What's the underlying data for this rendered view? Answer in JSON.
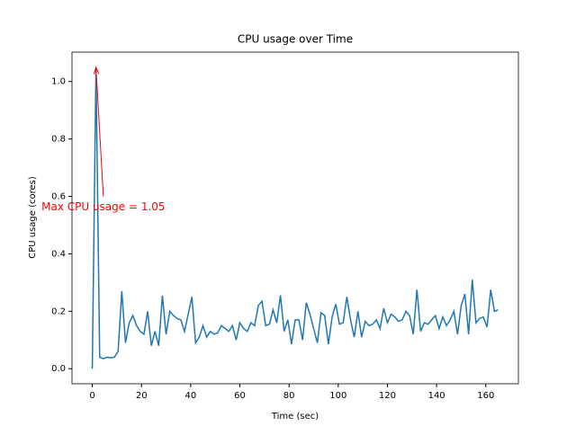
{
  "chart_data": {
    "type": "line",
    "title": "CPU usage over Time",
    "xlabel": "Time (sec)",
    "ylabel": "CPU usage (cores)",
    "x": [
      0,
      1.5,
      3,
      4.5,
      6,
      7.5,
      9,
      10.5,
      12,
      13.5,
      15,
      16.5,
      18,
      19.5,
      21,
      22.5,
      24,
      25.5,
      27,
      28.5,
      30,
      31.5,
      33,
      34.5,
      36,
      37.5,
      39,
      40.5,
      42,
      43.5,
      45,
      46.5,
      48,
      49.5,
      51,
      52.5,
      54,
      55.5,
      57,
      58.5,
      60,
      61.5,
      63,
      64.5,
      66,
      67.5,
      69,
      70.5,
      72,
      73.5,
      75,
      76.5,
      78,
      79.5,
      81,
      82.5,
      84,
      85.5,
      87,
      88.5,
      90,
      91.5,
      93,
      94.5,
      96,
      97.5,
      99,
      100.5,
      102,
      103.5,
      105,
      106.5,
      108,
      109.5,
      111,
      112.5,
      114,
      115.5,
      117,
      118.5,
      120,
      121.5,
      123,
      124.5,
      126,
      127.5,
      129,
      130.5,
      132,
      133.5,
      135,
      136.5,
      138,
      139.5,
      141,
      142.5,
      144,
      145.5,
      147,
      148.5,
      150,
      151.5,
      153,
      154.5,
      156,
      157.5,
      159,
      160.5,
      162,
      163.5,
      165
    ],
    "series": [
      {
        "name": "CPU usage",
        "color": "#1f77b4",
        "values": [
          0,
          1.05,
          0.04,
          0.035,
          0.04,
          0.038,
          0.04,
          0.06,
          0.27,
          0.09,
          0.16,
          0.185,
          0.15,
          0.13,
          0.12,
          0.2,
          0.08,
          0.13,
          0.08,
          0.255,
          0.12,
          0.2,
          0.185,
          0.175,
          0.17,
          0.13,
          0.19,
          0.25,
          0.09,
          0.11,
          0.15,
          0.11,
          0.13,
          0.12,
          0.125,
          0.15,
          0.14,
          0.13,
          0.15,
          0.1,
          0.16,
          0.14,
          0.13,
          0.16,
          0.15,
          0.22,
          0.235,
          0.15,
          0.155,
          0.205,
          0.16,
          0.255,
          0.13,
          0.17,
          0.085,
          0.17,
          0.17,
          0.1,
          0.23,
          0.19,
          0.14,
          0.09,
          0.195,
          0.185,
          0.085,
          0.18,
          0.225,
          0.155,
          0.16,
          0.25,
          0.17,
          0.11,
          0.2,
          0.11,
          0.165,
          0.15,
          0.155,
          0.17,
          0.14,
          0.21,
          0.16,
          0.19,
          0.18,
          0.165,
          0.17,
          0.2,
          0.185,
          0.12,
          0.275,
          0.13,
          0.16,
          0.155,
          0.17,
          0.185,
          0.14,
          0.18,
          0.15,
          0.17,
          0.2,
          0.12,
          0.22,
          0.26,
          0.12,
          0.31,
          0.16,
          0.175,
          0.18,
          0.145,
          0.275,
          0.2,
          0.205
        ]
      }
    ],
    "xlim": [
      -8.25,
      173.25
    ],
    "ylim": [
      -0.0525,
      1.1025
    ],
    "xticks": [
      0,
      20,
      40,
      60,
      80,
      100,
      120,
      140,
      160
    ],
    "yticks": [
      {
        "value": 0,
        "label": "0.0"
      },
      {
        "value": 0.2,
        "label": "0.2"
      },
      {
        "value": 0.4,
        "label": "0.4"
      },
      {
        "value": 0.6,
        "label": "0.6"
      },
      {
        "value": 0.8,
        "label": "0.8"
      },
      {
        "value": 1,
        "label": "1.0"
      }
    ],
    "annotation": {
      "text": "Max CPU usage = 1.05",
      "xy": [
        1.5,
        1.05
      ],
      "xytext": [
        4.5,
        0.6
      ],
      "color": "red"
    }
  }
}
